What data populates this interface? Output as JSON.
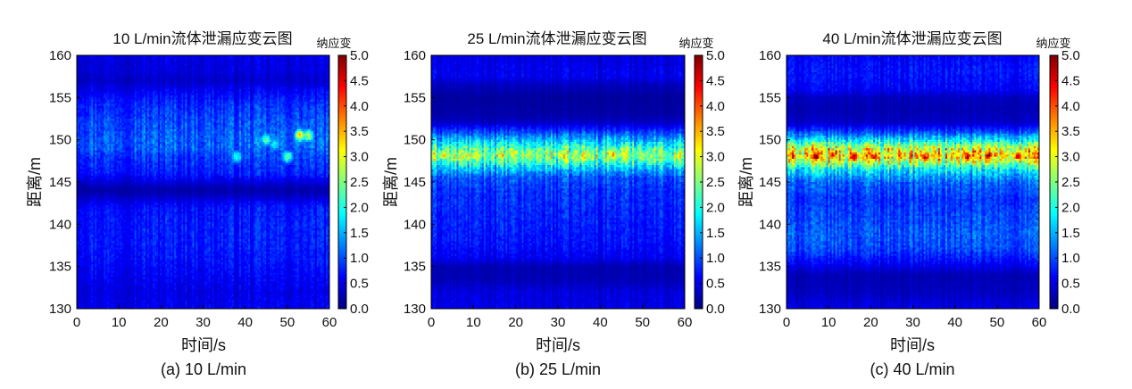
{
  "figure": {
    "panels": [
      {
        "title": "10 L/min流体泄漏应变云图",
        "caption": "(a) 10 L/min",
        "colorbar_label": "纳应变",
        "xlabel": "时间/s",
        "ylabel": "距离/m"
      },
      {
        "title": "25 L/min流体泄漏应变云图",
        "caption": "(b) 25 L/min",
        "colorbar_label": "纳应变",
        "xlabel": "时间/s",
        "ylabel": "距离/m"
      },
      {
        "title": "40 L/min流体泄漏应变云图",
        "caption": "(c) 40 L/min",
        "colorbar_label": "纳应变",
        "xlabel": "时间/s",
        "ylabel": "距离/m"
      }
    ]
  },
  "chart_data": [
    {
      "type": "heatmap",
      "title": "10 L/min流体泄漏应变云图",
      "xlabel": "时间/s",
      "ylabel": "距离/m",
      "colorbar_label": "纳应变",
      "colormap": "jet",
      "xlim": [
        0,
        60
      ],
      "ylim": [
        130,
        160
      ],
      "clim": [
        0,
        5
      ],
      "xticks": [
        0,
        10,
        20,
        30,
        40,
        50,
        60
      ],
      "yticks": [
        130,
        135,
        140,
        145,
        150,
        155,
        160
      ],
      "cticks": [
        "0.0",
        "0.5",
        "1.0",
        "1.5",
        "2.0",
        "2.5",
        "3.0",
        "3.5",
        "4.0",
        "4.5",
        "5.0"
      ],
      "distance_profile": [
        [
          130,
          0.55
        ],
        [
          132,
          0.5
        ],
        [
          134,
          0.6
        ],
        [
          136,
          0.7
        ],
        [
          138,
          0.75
        ],
        [
          140,
          0.75
        ],
        [
          142,
          0.7
        ],
        [
          143.5,
          0.3
        ],
        [
          144,
          0.2
        ],
        [
          144.5,
          0.3
        ],
        [
          146,
          0.75
        ],
        [
          148,
          0.9
        ],
        [
          149,
          1.1
        ],
        [
          150,
          1.1
        ],
        [
          152,
          1.0
        ],
        [
          153,
          0.9
        ],
        [
          154,
          0.85
        ],
        [
          156,
          0.55
        ],
        [
          157,
          0.35
        ],
        [
          158,
          0.45
        ],
        [
          160,
          0.5
        ]
      ],
      "hotspots": [
        {
          "t": 38,
          "d": 148.0,
          "value": 2.1
        },
        {
          "t": 45,
          "d": 150.0,
          "value": 2.3
        },
        {
          "t": 47,
          "d": 149.5,
          "value": 2.0
        },
        {
          "t": 50,
          "d": 148.0,
          "value": 2.4
        },
        {
          "t": 53,
          "d": 150.5,
          "value": 3.2
        },
        {
          "t": 55,
          "d": 150.5,
          "value": 2.7
        }
      ]
    },
    {
      "type": "heatmap",
      "title": "25 L/min流体泄漏应变云图",
      "xlabel": "时间/s",
      "ylabel": "距离/m",
      "colorbar_label": "纳应变",
      "colormap": "jet",
      "xlim": [
        0,
        60
      ],
      "ylim": [
        130,
        160
      ],
      "clim": [
        0,
        5
      ],
      "xticks": [
        0,
        10,
        20,
        30,
        40,
        50,
        60
      ],
      "yticks": [
        130,
        135,
        140,
        145,
        150,
        155,
        160
      ],
      "cticks": [
        "0.0",
        "0.5",
        "1.0",
        "1.5",
        "2.0",
        "2.5",
        "3.0",
        "3.5",
        "4.0",
        "4.5",
        "5.0"
      ],
      "distance_profile": [
        [
          130,
          0.5
        ],
        [
          132,
          0.45
        ],
        [
          133.5,
          0.25
        ],
        [
          135,
          0.25
        ],
        [
          136,
          0.55
        ],
        [
          138,
          0.7
        ],
        [
          140,
          0.75
        ],
        [
          142,
          0.8
        ],
        [
          144,
          0.85
        ],
        [
          145.5,
          1.0
        ],
        [
          146.5,
          1.5
        ],
        [
          147.5,
          2.3
        ],
        [
          148.2,
          2.6
        ],
        [
          149,
          2.2
        ],
        [
          150,
          1.5
        ],
        [
          151,
          0.9
        ],
        [
          152,
          0.35
        ],
        [
          153,
          0.2
        ],
        [
          155,
          0.15
        ],
        [
          156.5,
          0.3
        ],
        [
          157.5,
          0.55
        ],
        [
          159,
          0.5
        ],
        [
          160,
          0.45
        ]
      ],
      "hotspots": [
        {
          "t": 3,
          "d": 148.2,
          "value": 3.2
        },
        {
          "t": 9,
          "d": 148.0,
          "value": 3.0
        },
        {
          "t": 31,
          "d": 148.2,
          "value": 3.1
        },
        {
          "t": 36,
          "d": 148.0,
          "value": 3.3
        },
        {
          "t": 43,
          "d": 148.2,
          "value": 3.4
        },
        {
          "t": 50,
          "d": 148.0,
          "value": 3.0
        }
      ]
    },
    {
      "type": "heatmap",
      "title": "40 L/min流体泄漏应变云图",
      "xlabel": "时间/s",
      "ylabel": "距离/m",
      "colorbar_label": "纳应变",
      "colormap": "jet",
      "xlim": [
        0,
        60
      ],
      "ylim": [
        130,
        160
      ],
      "clim": [
        0,
        5
      ],
      "xticks": [
        0,
        10,
        20,
        30,
        40,
        50,
        60
      ],
      "yticks": [
        130,
        135,
        140,
        145,
        150,
        155,
        160
      ],
      "cticks": [
        "0.0",
        "0.5",
        "1.0",
        "1.5",
        "2.0",
        "2.5",
        "3.0",
        "3.5",
        "4.0",
        "4.5",
        "5.0"
      ],
      "distance_profile": [
        [
          130,
          0.5
        ],
        [
          132,
          0.3
        ],
        [
          134,
          0.25
        ],
        [
          135,
          0.5
        ],
        [
          137,
          0.95
        ],
        [
          139,
          1.05
        ],
        [
          141,
          0.95
        ],
        [
          143,
          0.85
        ],
        [
          145,
          1.1
        ],
        [
          146.5,
          1.8
        ],
        [
          147.5,
          2.9
        ],
        [
          148.2,
          3.3
        ],
        [
          149,
          2.9
        ],
        [
          150,
          1.7
        ],
        [
          151,
          0.9
        ],
        [
          152,
          0.35
        ],
        [
          153.5,
          0.25
        ],
        [
          155,
          0.3
        ],
        [
          156,
          0.6
        ],
        [
          158,
          0.7
        ],
        [
          160,
          0.6
        ]
      ],
      "hotspots": [
        {
          "t": 7,
          "d": 148.0,
          "value": 4.6
        },
        {
          "t": 11,
          "d": 148.2,
          "value": 4.2
        },
        {
          "t": 16,
          "d": 148.0,
          "value": 4.8
        },
        {
          "t": 21,
          "d": 148.0,
          "value": 4.4
        },
        {
          "t": 27,
          "d": 148.2,
          "value": 4.0
        },
        {
          "t": 33,
          "d": 148.0,
          "value": 4.3
        },
        {
          "t": 43,
          "d": 148.0,
          "value": 4.5
        },
        {
          "t": 48,
          "d": 148.2,
          "value": 4.6
        },
        {
          "t": 55,
          "d": 148.0,
          "value": 4.2
        }
      ]
    }
  ]
}
